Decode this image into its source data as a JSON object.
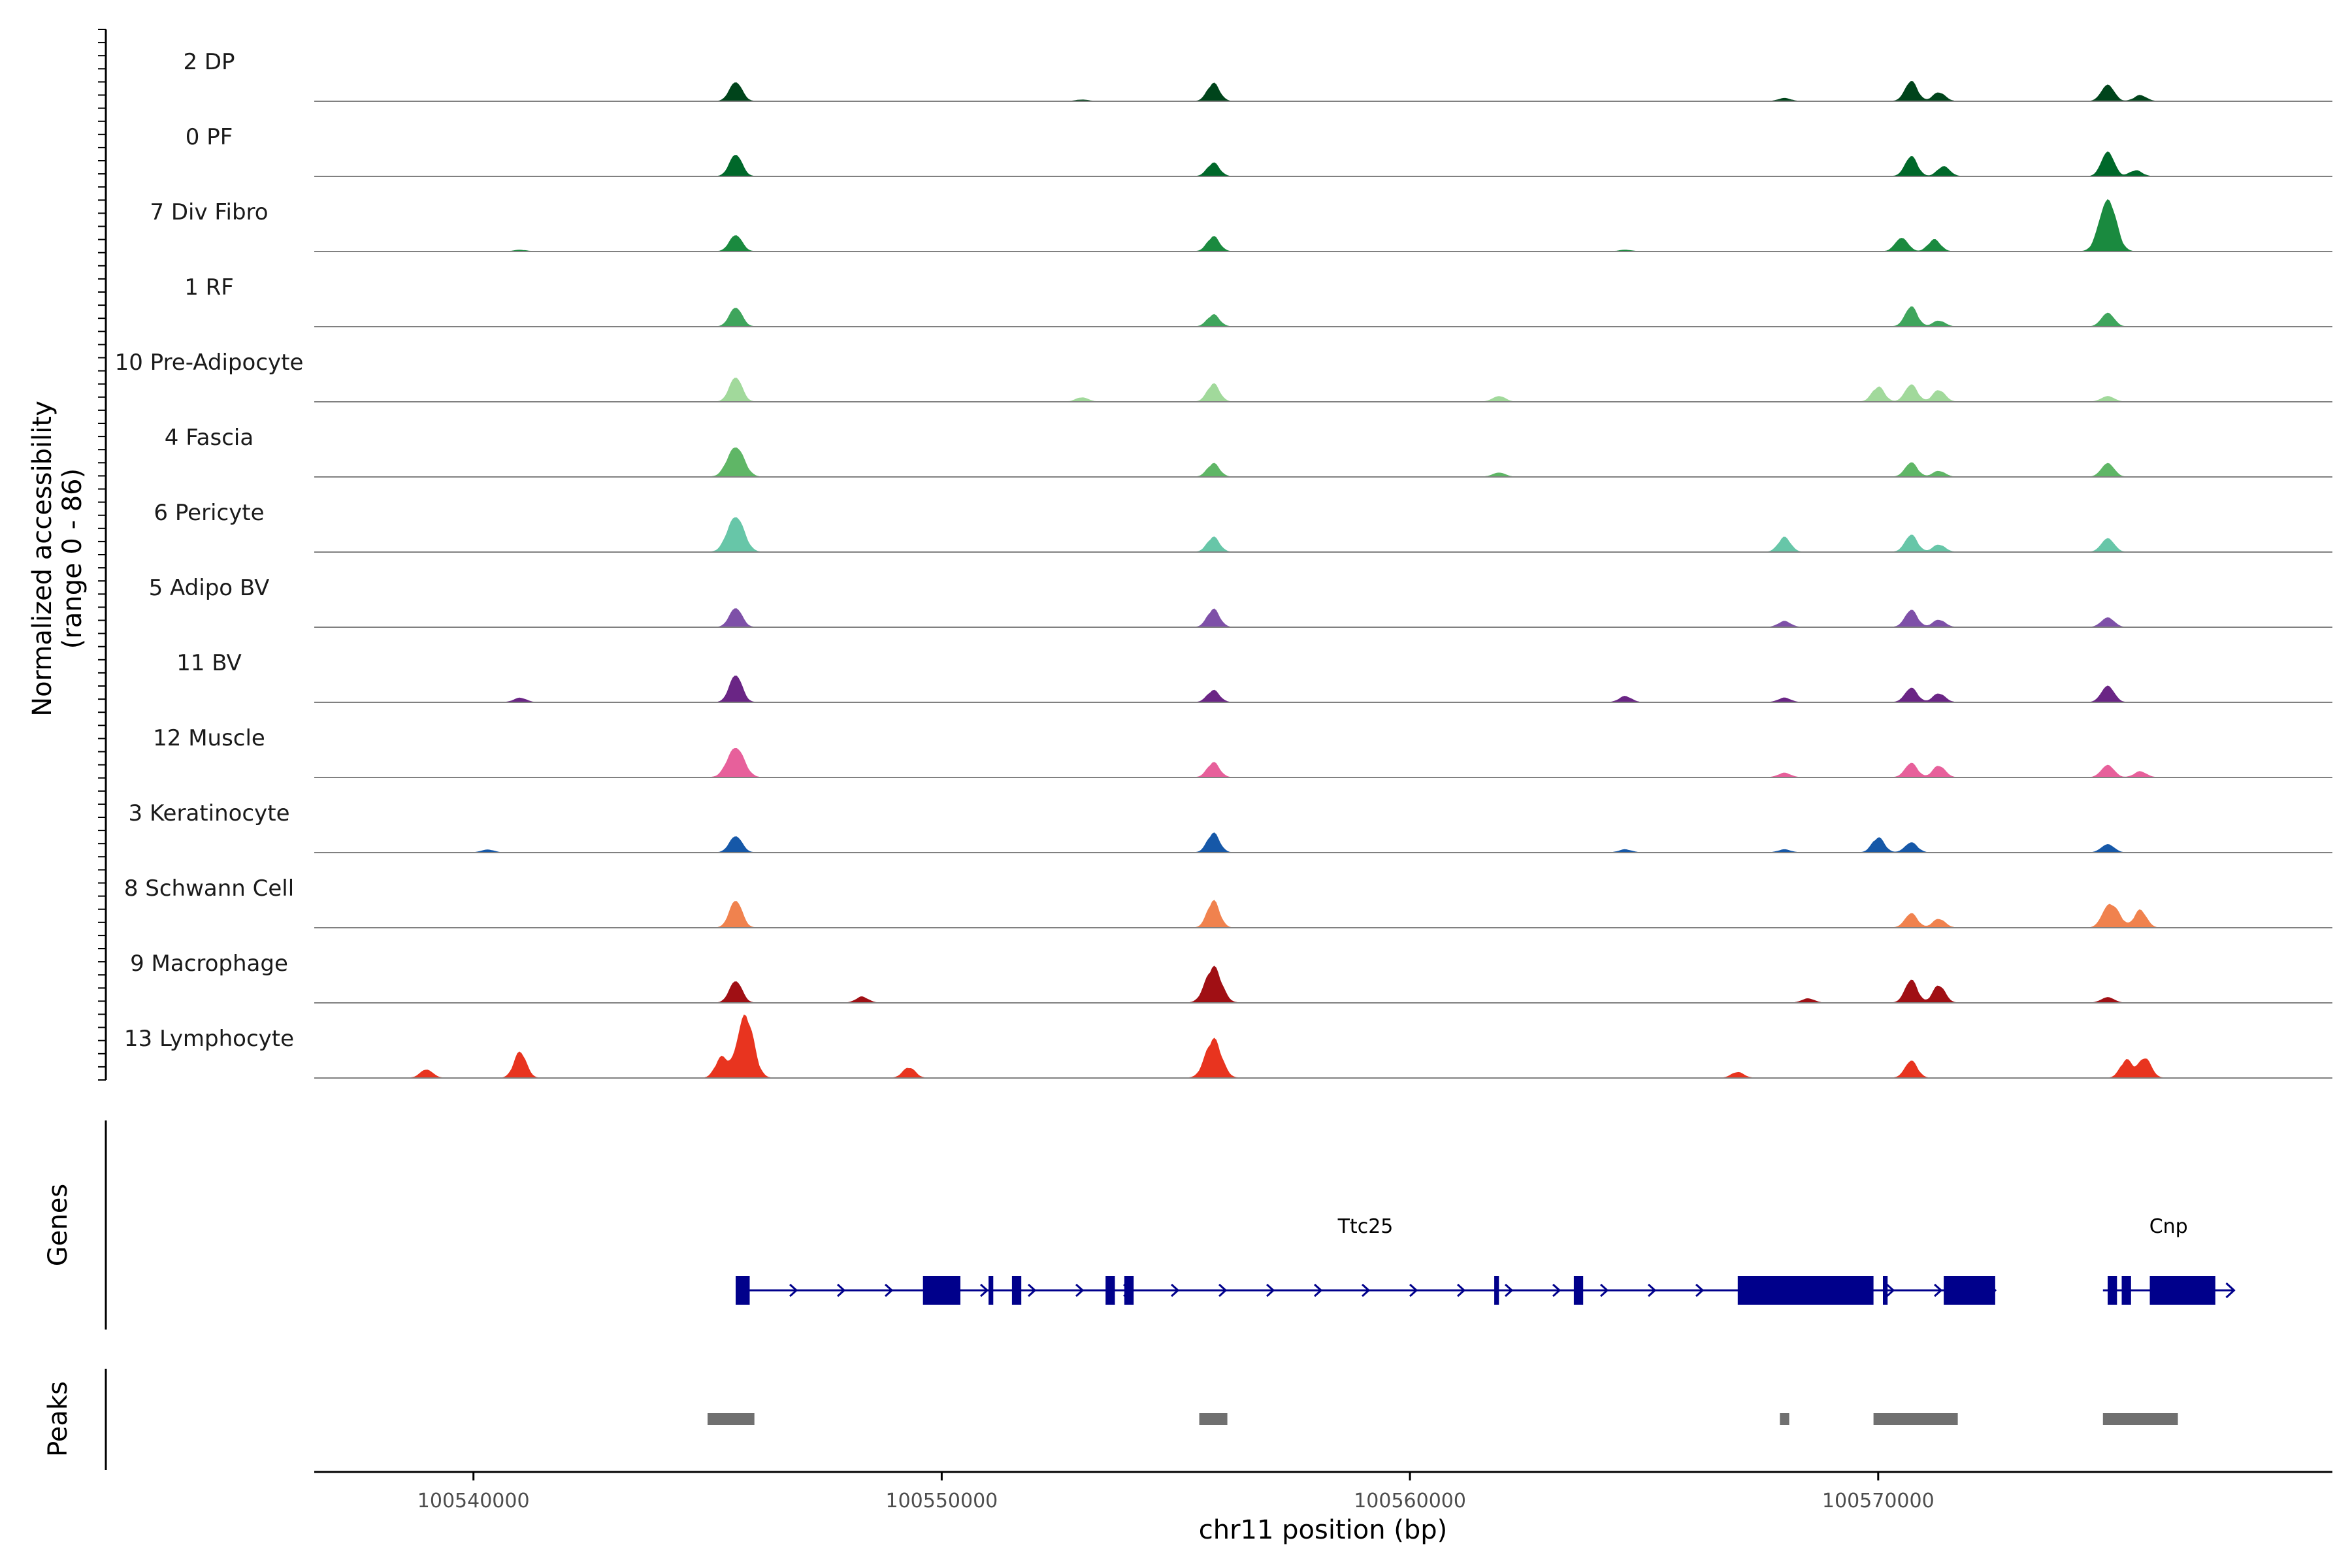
{
  "chart_data": {
    "type": "area",
    "chromosome": "chr11",
    "ylabel_line1": "Normalized accessibility",
    "ylabel_line2": "(range 0 - 86)",
    "y_range": [
      0,
      86
    ],
    "xlabel": "chr11 position (bp)",
    "xlim": [
      100536600,
      100579700
    ],
    "x_ticks": [
      100540000,
      100550000,
      100560000,
      100570000
    ],
    "x_tick_labels": [
      "100540000",
      "100550000",
      "100560000",
      "100570000"
    ],
    "genes_label": "Genes",
    "peaks_label": "Peaks",
    "tracks": [
      {
        "name": "2 DP",
        "color": "#00441b",
        "peaks": [
          [
            100545600,
            14
          ],
          [
            100555800,
            12
          ],
          [
            100570700,
            14
          ],
          [
            100571300,
            6
          ],
          [
            100574900,
            12
          ],
          [
            100575600,
            4
          ],
          [
            100568000,
            2
          ],
          [
            100553000,
            1
          ]
        ]
      },
      {
        "name": "0 PF",
        "color": "#00682a",
        "peaks": [
          [
            100545600,
            16
          ],
          [
            100555800,
            9
          ],
          [
            100570700,
            14
          ],
          [
            100571400,
            7
          ],
          [
            100574900,
            18
          ],
          [
            100575500,
            4
          ]
        ]
      },
      {
        "name": "7 Div Fibro",
        "color": "#1a8a3f",
        "peaks": [
          [
            100545600,
            12
          ],
          [
            100555800,
            10
          ],
          [
            100570500,
            10
          ],
          [
            100571200,
            8
          ],
          [
            100574900,
            38
          ],
          [
            100541000,
            1
          ],
          [
            100564600,
            1
          ]
        ]
      },
      {
        "name": "1 RF",
        "color": "#3fa55c",
        "peaks": [
          [
            100545600,
            14
          ],
          [
            100555800,
            8
          ],
          [
            100570700,
            14
          ],
          [
            100571300,
            4
          ],
          [
            100574900,
            10
          ]
        ]
      },
      {
        "name": "10 Pre-Adipocyte",
        "color": "#a1d99b",
        "peaks": [
          [
            100545600,
            18
          ],
          [
            100555800,
            12
          ],
          [
            100570000,
            10
          ],
          [
            100570700,
            12
          ],
          [
            100571300,
            8
          ],
          [
            100574900,
            4
          ],
          [
            100561900,
            4
          ],
          [
            100553000,
            3
          ]
        ]
      },
      {
        "name": "4 Fascia",
        "color": "#5fb666",
        "peaks": [
          [
            100545600,
            22
          ],
          [
            100555800,
            9
          ],
          [
            100570700,
            10
          ],
          [
            100571300,
            4
          ],
          [
            100574900,
            10
          ],
          [
            100561900,
            3
          ]
        ]
      },
      {
        "name": "6 Pericyte",
        "color": "#67c6a8",
        "peaks": [
          [
            100545600,
            26
          ],
          [
            100555800,
            10
          ],
          [
            100570700,
            12
          ],
          [
            100568000,
            10
          ],
          [
            100571300,
            5
          ],
          [
            100574900,
            10
          ]
        ]
      },
      {
        "name": "5 Adipo BV",
        "color": "#7e50a8",
        "peaks": [
          [
            100545600,
            14
          ],
          [
            100555800,
            12
          ],
          [
            100570700,
            12
          ],
          [
            100571300,
            5
          ],
          [
            100574900,
            7
          ],
          [
            100568000,
            4
          ]
        ]
      },
      {
        "name": "11 BV",
        "color": "#6a2585",
        "peaks": [
          [
            100545600,
            20
          ],
          [
            100555800,
            8
          ],
          [
            100570700,
            10
          ],
          [
            100571300,
            6
          ],
          [
            100574900,
            12
          ],
          [
            100541000,
            3
          ],
          [
            100564600,
            4
          ],
          [
            100568000,
            3
          ]
        ]
      },
      {
        "name": "12 Muscle",
        "color": "#e7609b",
        "peaks": [
          [
            100545600,
            22
          ],
          [
            100555800,
            10
          ],
          [
            100570700,
            10
          ],
          [
            100571300,
            8
          ],
          [
            100574900,
            9
          ],
          [
            100568000,
            3
          ],
          [
            100575600,
            4
          ]
        ]
      },
      {
        "name": "3 Keratinocyte",
        "color": "#1658a8",
        "peaks": [
          [
            100545600,
            12
          ],
          [
            100555800,
            13
          ],
          [
            100570000,
            10
          ],
          [
            100570700,
            7
          ],
          [
            100574900,
            6
          ],
          [
            100540300,
            2
          ],
          [
            100568000,
            2
          ],
          [
            100564600,
            2
          ]
        ]
      },
      {
        "name": "8 Schwann Cell",
        "color": "#f0824e",
        "peaks": [
          [
            100545600,
            20
          ],
          [
            100555800,
            18
          ],
          [
            100570700,
            10
          ],
          [
            100571300,
            6
          ],
          [
            100574900,
            14
          ],
          [
            100575600,
            12
          ],
          [
            100575100,
            8
          ]
        ]
      },
      {
        "name": "9 Macrophage",
        "color": "#a00f14",
        "peaks": [
          [
            100545600,
            16
          ],
          [
            100555800,
            24
          ],
          [
            100570700,
            16
          ],
          [
            100571300,
            12
          ],
          [
            100574900,
            4
          ],
          [
            100548300,
            4
          ],
          [
            100568500,
            3
          ]
        ]
      },
      {
        "name": "13 Lymphocyte",
        "color": "#e8341f",
        "peaks": [
          [
            100545800,
            44
          ],
          [
            100545300,
            14
          ],
          [
            100555800,
            26
          ],
          [
            100541000,
            18
          ],
          [
            100570700,
            12
          ],
          [
            100575300,
            12
          ],
          [
            100575700,
            14
          ],
          [
            100539000,
            6
          ],
          [
            100549300,
            7
          ],
          [
            100567000,
            4
          ]
        ]
      }
    ],
    "genes": [
      {
        "name": "Ttc25",
        "strand": "+",
        "start": 100545600,
        "end": 100572500,
        "exons": [
          [
            100545600,
            100545900
          ],
          [
            100549600,
            100550400
          ],
          [
            100551000,
            100551100
          ],
          [
            100551500,
            100551700
          ],
          [
            100553500,
            100553700
          ],
          [
            100553900,
            100554100
          ],
          [
            100561800,
            100561900
          ],
          [
            100563500,
            100563700
          ],
          [
            100567000,
            100569900
          ],
          [
            100570100,
            100570200
          ],
          [
            100571400,
            100572500
          ]
        ]
      },
      {
        "name": "Cnp",
        "strand": "+",
        "start": 100574800,
        "end": 100577600,
        "exons": [
          [
            100574900,
            100575100
          ],
          [
            100575200,
            100575400
          ],
          [
            100575800,
            100577200
          ]
        ]
      }
    ],
    "peak_regions": [
      [
        100545000,
        100546000
      ],
      [
        100555500,
        100556100
      ],
      [
        100567900,
        100568100
      ],
      [
        100569900,
        100571700
      ],
      [
        100574800,
        100576400
      ]
    ]
  }
}
